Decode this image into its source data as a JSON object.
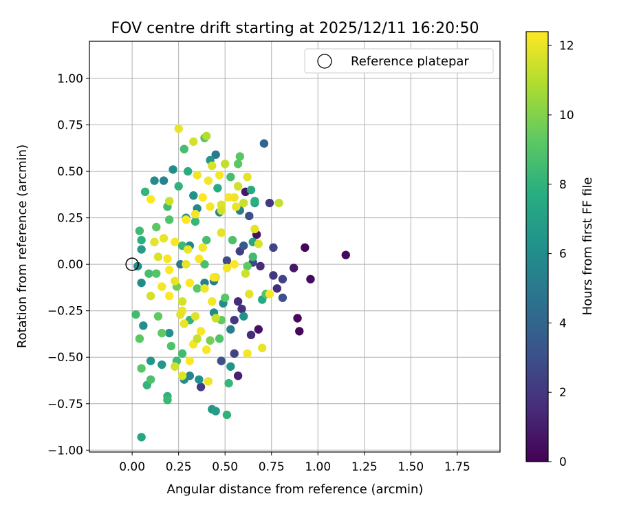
{
  "chart_data": {
    "type": "scatter",
    "title": "FOV centre drift starting at 2025/12/11 16:20:50",
    "xlabel": "Angular distance from reference (arcmin)",
    "ylabel": "Rotation from reference (arcmin)",
    "xlim": [
      -0.23,
      1.98
    ],
    "ylim": [
      -1.01,
      1.2
    ],
    "xticks": [
      "0.00",
      "0.25",
      "0.50",
      "0.75",
      "1.00",
      "1.25",
      "1.50",
      "1.75"
    ],
    "xtick_values": [
      0,
      0.25,
      0.5,
      0.75,
      1.0,
      1.25,
      1.5,
      1.75
    ],
    "yticks": [
      "−1.00",
      "−0.75",
      "−0.50",
      "−0.25",
      "0.00",
      "0.25",
      "0.50",
      "0.75",
      "1.00"
    ],
    "ytick_values": [
      -1.0,
      -0.75,
      -0.5,
      -0.25,
      0,
      0.25,
      0.5,
      0.75,
      1.0
    ],
    "grid": true,
    "legend": {
      "position": "upper-right",
      "label": "Reference platepar"
    },
    "reference_point": {
      "x": 0.0,
      "y": 0.0
    },
    "colorbar": {
      "label": "Hours from first FF file",
      "colormap": "viridis",
      "range": [
        0,
        12.4
      ],
      "ticks": [
        "0",
        "2",
        "4",
        "6",
        "8",
        "10",
        "12"
      ],
      "tick_values": [
        0,
        2,
        4,
        6,
        8,
        10,
        12
      ]
    },
    "series": [
      {
        "points": [
          [
            0.93,
            0.09,
            0.2
          ],
          [
            1.15,
            0.05,
            0.3
          ],
          [
            0.96,
            -0.08,
            0.4
          ],
          [
            0.89,
            -0.29,
            0.3
          ],
          [
            0.9,
            -0.36,
            0.2
          ],
          [
            0.87,
            -0.02,
            0.8
          ],
          [
            0.78,
            -0.13,
            1.5
          ],
          [
            0.81,
            -0.08,
            2.5
          ],
          [
            0.76,
            -0.06,
            2.0
          ],
          [
            0.67,
            0.16,
            0.6
          ],
          [
            0.68,
            -0.35,
            0.6
          ],
          [
            0.61,
            0.39,
            0.8
          ],
          [
            0.71,
            0.65,
            4.0
          ],
          [
            0.74,
            0.33,
            2.0
          ],
          [
            0.76,
            0.09,
            2.5
          ],
          [
            0.69,
            -0.01,
            1.5
          ],
          [
            0.64,
            -0.38,
            1.5
          ],
          [
            0.81,
            -0.18,
            3.0
          ],
          [
            0.58,
            0.07,
            2.2
          ],
          [
            0.57,
            -0.6,
            1.2
          ],
          [
            0.55,
            -0.48,
            2.5
          ],
          [
            0.63,
            0.26,
            3.0
          ],
          [
            0.37,
            -0.66,
            2.2
          ],
          [
            0.48,
            -0.52,
            3.0
          ],
          [
            0.51,
            0.02,
            2.8
          ],
          [
            0.59,
            -0.24,
            1.8
          ],
          [
            0.57,
            -0.2,
            1.5
          ],
          [
            0.55,
            -0.3,
            2.0
          ],
          [
            0.45,
            0.59,
            5.0
          ],
          [
            0.65,
            0.01,
            2.7
          ],
          [
            0.6,
            0.1,
            3.5
          ],
          [
            0.22,
            0.51,
            6.0
          ],
          [
            0.17,
            0.45,
            5.5
          ],
          [
            0.12,
            0.45,
            6.0
          ],
          [
            0.42,
            0.56,
            6.5
          ],
          [
            0.33,
            0.37,
            6.2
          ],
          [
            0.35,
            0.3,
            5.8
          ],
          [
            0.29,
            0.25,
            6.4
          ],
          [
            0.31,
            0.1,
            5.6
          ],
          [
            0.26,
            0.0,
            5.0
          ],
          [
            0.39,
            -0.1,
            5.4
          ],
          [
            0.44,
            -0.26,
            5.8
          ],
          [
            0.2,
            -0.37,
            6.2
          ],
          [
            0.16,
            -0.54,
            6.5
          ],
          [
            0.28,
            -0.62,
            6.0
          ],
          [
            0.31,
            -0.6,
            5.6
          ],
          [
            0.36,
            -0.62,
            6.2
          ],
          [
            0.43,
            -0.78,
            6.6
          ],
          [
            0.45,
            -0.79,
            6.8
          ],
          [
            0.53,
            -0.55,
            6.4
          ],
          [
            0.49,
            -0.21,
            6.0
          ],
          [
            0.47,
            0.28,
            5.7
          ],
          [
            0.58,
            0.29,
            5.5
          ],
          [
            0.66,
            0.33,
            7.0
          ],
          [
            0.65,
            0.12,
            7.2
          ],
          [
            0.7,
            -0.19,
            7.5
          ],
          [
            0.64,
            0.4,
            7.5
          ],
          [
            0.05,
            -0.1,
            5.9
          ],
          [
            0.03,
            -0.01,
            6.2
          ],
          [
            0.05,
            0.08,
            6.8
          ],
          [
            0.1,
            -0.52,
            6.6
          ],
          [
            0.06,
            -0.33,
            6.1
          ],
          [
            0.44,
            -0.09,
            5.2
          ],
          [
            0.53,
            -0.35,
            5.3
          ],
          [
            0.6,
            -0.28,
            6.3
          ],
          [
            0.05,
            -0.93,
            7.3
          ],
          [
            0.19,
            -0.71,
            8.0
          ],
          [
            0.19,
            -0.73,
            8.3
          ],
          [
            0.51,
            -0.81,
            8.0
          ],
          [
            0.52,
            -0.64,
            8.2
          ],
          [
            0.08,
            -0.65,
            8.1
          ],
          [
            0.1,
            -0.62,
            8.8
          ],
          [
            0.05,
            -0.56,
            9.1
          ],
          [
            0.04,
            -0.4,
            9.2
          ],
          [
            0.02,
            -0.27,
            8.5
          ],
          [
            0.04,
            0.18,
            8.4
          ],
          [
            0.05,
            0.13,
            7.8
          ],
          [
            0.07,
            0.39,
            8.1
          ],
          [
            0.09,
            -0.05,
            8.6
          ],
          [
            0.28,
            0.62,
            8.6
          ],
          [
            0.25,
            0.42,
            8.0
          ],
          [
            0.3,
            0.5,
            7.7
          ],
          [
            0.46,
            0.41,
            7.6
          ],
          [
            0.53,
            0.47,
            8.6
          ],
          [
            0.58,
            0.58,
            9.1
          ],
          [
            0.57,
            0.54,
            9.2
          ],
          [
            0.66,
            0.34,
            7.8
          ],
          [
            0.39,
            0.68,
            9.0
          ],
          [
            0.34,
            0.23,
            8.2
          ],
          [
            0.19,
            0.31,
            8.5
          ],
          [
            0.2,
            0.24,
            8.9
          ],
          [
            0.13,
            0.2,
            9.2
          ],
          [
            0.27,
            0.1,
            8.3
          ],
          [
            0.39,
            0.0,
            8.7
          ],
          [
            0.47,
            -0.4,
            8.9
          ],
          [
            0.31,
            -0.3,
            8.1
          ],
          [
            0.27,
            -0.48,
            8.5
          ],
          [
            0.24,
            -0.52,
            8.4
          ],
          [
            0.16,
            -0.37,
            9.3
          ],
          [
            0.24,
            -0.12,
            9.6
          ],
          [
            0.13,
            -0.05,
            9.0
          ],
          [
            0.35,
            -0.13,
            9.2
          ],
          [
            0.42,
            -0.41,
            9.7
          ],
          [
            0.48,
            -0.3,
            9.4
          ],
          [
            0.5,
            -0.18,
            9.1
          ],
          [
            0.54,
            0.13,
            8.8
          ],
          [
            0.62,
            -0.01,
            9.3
          ],
          [
            0.72,
            -0.16,
            9.0
          ],
          [
            0.65,
            0.04,
            8.5
          ],
          [
            0.4,
            0.13,
            8.6
          ],
          [
            0.21,
            -0.44,
            8.9
          ],
          [
            0.14,
            -0.28,
            9.3
          ],
          [
            0.25,
            0.73,
            12.0
          ],
          [
            0.33,
            0.66,
            11.6
          ],
          [
            0.4,
            0.69,
            11.0
          ],
          [
            0.43,
            0.53,
            11.7
          ],
          [
            0.35,
            0.48,
            12.1
          ],
          [
            0.47,
            0.48,
            12.3
          ],
          [
            0.62,
            0.47,
            11.9
          ],
          [
            0.5,
            0.54,
            11.2
          ],
          [
            0.57,
            0.42,
            11.5
          ],
          [
            0.41,
            0.45,
            12.2
          ],
          [
            0.38,
            0.36,
            12.4
          ],
          [
            0.48,
            0.32,
            11.8
          ],
          [
            0.52,
            0.36,
            12.3
          ],
          [
            0.66,
            0.19,
            11.9
          ],
          [
            0.55,
            0.36,
            12.1
          ],
          [
            0.6,
            0.33,
            11.4
          ],
          [
            0.79,
            0.33,
            11.3
          ],
          [
            0.56,
            0.31,
            12.0
          ],
          [
            0.42,
            0.31,
            12.3
          ],
          [
            0.48,
            0.29,
            11.6
          ],
          [
            0.34,
            0.27,
            12.2
          ],
          [
            0.29,
            0.24,
            12.4
          ],
          [
            0.2,
            0.34,
            11.4
          ],
          [
            0.17,
            0.14,
            12.0
          ],
          [
            0.23,
            0.12,
            12.3
          ],
          [
            0.29,
            0.0,
            12.0
          ],
          [
            0.36,
            0.03,
            12.3
          ],
          [
            0.45,
            -0.07,
            11.8
          ],
          [
            0.51,
            -0.02,
            12.2
          ],
          [
            0.55,
            0.0,
            12.4
          ],
          [
            0.61,
            -0.05,
            11.5
          ],
          [
            0.63,
            -0.16,
            11.9
          ],
          [
            0.74,
            -0.16,
            12.3
          ],
          [
            0.68,
            0.11,
            11.7
          ],
          [
            0.39,
            -0.13,
            12.1
          ],
          [
            0.31,
            -0.1,
            12.4
          ],
          [
            0.23,
            -0.09,
            12.0
          ],
          [
            0.16,
            -0.12,
            12.2
          ],
          [
            0.12,
            0.12,
            11.9
          ],
          [
            0.1,
            -0.17,
            11.6
          ],
          [
            0.2,
            -0.17,
            12.4
          ],
          [
            0.27,
            -0.25,
            12.1
          ],
          [
            0.34,
            -0.28,
            11.8
          ],
          [
            0.43,
            -0.2,
            12.2
          ],
          [
            0.45,
            -0.29,
            11.4
          ],
          [
            0.37,
            -0.36,
            12.3
          ],
          [
            0.28,
            -0.32,
            12.0
          ],
          [
            0.23,
            -0.55,
            11.5
          ],
          [
            0.33,
            -0.43,
            12.2
          ],
          [
            0.26,
            -0.27,
            11.9
          ],
          [
            0.4,
            -0.46,
            12.3
          ],
          [
            0.41,
            -0.63,
            12.1
          ],
          [
            0.62,
            -0.48,
            12.2
          ],
          [
            0.7,
            -0.45,
            12.0
          ],
          [
            0.27,
            -0.6,
            11.8
          ],
          [
            0.31,
            -0.52,
            12.4
          ],
          [
            0.35,
            -0.4,
            11.3
          ],
          [
            0.44,
            -0.07,
            12.3
          ],
          [
            0.48,
            0.17,
            11.9
          ],
          [
            0.3,
            0.08,
            12.0
          ],
          [
            0.19,
            0.03,
            12.3
          ],
          [
            0.14,
            0.04,
            11.7
          ],
          [
            0.2,
            -0.03,
            12.4
          ],
          [
            0.27,
            -0.2,
            11.6
          ],
          [
            0.38,
            0.09,
            12.2
          ],
          [
            0.1,
            0.35,
            12.4
          ]
        ]
      }
    ]
  }
}
